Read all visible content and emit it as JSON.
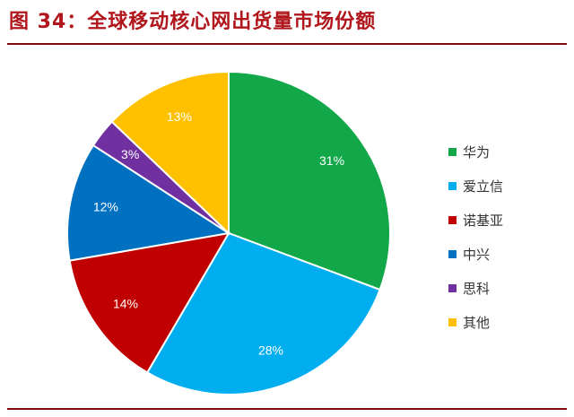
{
  "header": {
    "title": "图 34：全球移动核心网出货量市场份额"
  },
  "chart_data": {
    "type": "pie",
    "title": "",
    "slices": [
      {
        "name": "华为",
        "value": 31,
        "label": "31%",
        "color": "#12a84a"
      },
      {
        "name": "爱立信",
        "value": 28,
        "label": "28%",
        "color": "#00aeef"
      },
      {
        "name": "诺基亚",
        "value": 14,
        "label": "14%",
        "color": "#c00000"
      },
      {
        "name": "中兴",
        "value": 12,
        "label": "12%",
        "color": "#0070c0"
      },
      {
        "name": "思科",
        "value": 3,
        "label": "3%",
        "color": "#7030a0"
      },
      {
        "name": "其他",
        "value": 13,
        "label": "13%",
        "color": "#ffc000"
      }
    ],
    "start_angle_deg": 0,
    "direction": "clockwise",
    "legend_position": "right"
  }
}
